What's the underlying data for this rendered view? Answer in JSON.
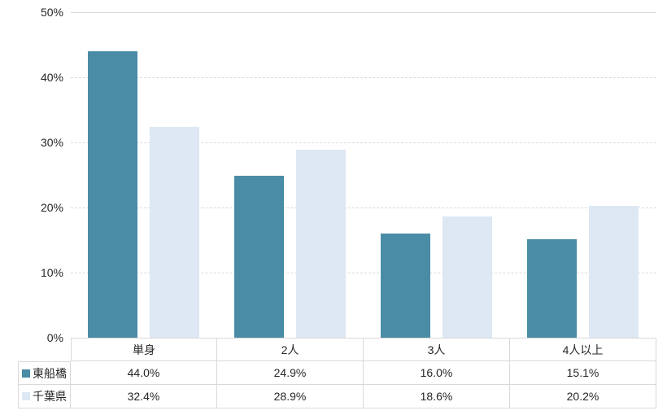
{
  "chart_data": {
    "type": "bar",
    "title": "",
    "xlabel": "",
    "ylabel": "",
    "categories": [
      "単身",
      "2人",
      "3人",
      "4人以上"
    ],
    "series": [
      {
        "name": "東船橋",
        "values": [
          44.0,
          24.9,
          16.0,
          15.1
        ],
        "color": "#4a8ca6"
      },
      {
        "name": "千葉県",
        "values": [
          32.4,
          28.9,
          18.6,
          20.2
        ],
        "color": "#dde8f4"
      }
    ],
    "ylim": [
      0,
      50
    ],
    "ytick_step": 10,
    "ytick_labels": [
      "0%",
      "10%",
      "20%",
      "30%",
      "40%",
      "50%"
    ],
    "grid": "horizontal-dashed",
    "legend_position": "data-table-left"
  },
  "data_table": {
    "header": [
      "単身",
      "2人",
      "3人",
      "4人以上"
    ],
    "rows": [
      {
        "legend": "東船橋",
        "swatch_color": "#4a8ca6",
        "cells": [
          "44.0%",
          "24.9%",
          "16.0%",
          "15.1%"
        ]
      },
      {
        "legend": "千葉県",
        "swatch_color": "#dde8f4",
        "cells": [
          "32.4%",
          "28.9%",
          "18.6%",
          "20.2%"
        ]
      }
    ]
  },
  "colors": {
    "gridline": "#d9d9d9",
    "table_border": "#d9d9d9",
    "text": "#262626",
    "background": "#ffffff"
  }
}
